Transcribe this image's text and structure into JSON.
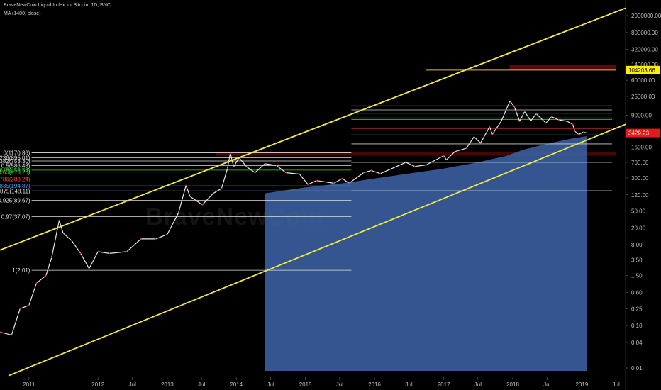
{
  "chart_data": {
    "type": "line",
    "title": "BraveNewCoin Liquid Index for Bitcoin, 1D, BNC",
    "indicator": "MA (1400, close)",
    "y_scale": "log",
    "ylim": [
      0.01,
      2000000
    ],
    "xlim": [
      "2010-08-01",
      "2019-08-20"
    ],
    "y_ticks": [
      "2000000.00",
      "800000.00",
      "320000.00",
      "140000.00",
      "60000.00",
      "25000.00",
      "9000.00",
      "3600.00",
      "1600.00",
      "700.00",
      "300.00",
      "120.00",
      "50.00",
      "20.00",
      "8.00",
      "3.50",
      "1.50",
      "0.60",
      "0.25",
      "0.10",
      "0.04",
      "0.01"
    ],
    "y_tick_values": [
      2000000,
      800000,
      320000,
      140000,
      60000,
      25000,
      9000,
      3600,
      1600,
      700,
      300,
      120,
      50,
      20,
      8,
      3.5,
      1.5,
      0.6,
      0.25,
      0.1,
      0.04,
      0.01
    ],
    "x_ticks": [
      {
        "label": "2011",
        "date": "2011-01-01"
      },
      {
        "label": "2012",
        "date": "2012-01-01"
      },
      {
        "label": "Jul",
        "date": "2012-07-01"
      },
      {
        "label": "2013",
        "date": "2013-01-01"
      },
      {
        "label": "Jul",
        "date": "2013-07-01"
      },
      {
        "label": "2014",
        "date": "2014-01-01"
      },
      {
        "label": "Jul",
        "date": "2014-07-01"
      },
      {
        "label": "2015",
        "date": "2015-01-01"
      },
      {
        "label": "Jul",
        "date": "2015-07-01"
      },
      {
        "label": "2016",
        "date": "2016-01-01"
      },
      {
        "label": "Jul",
        "date": "2016-07-01"
      },
      {
        "label": "2017",
        "date": "2017-01-01"
      },
      {
        "label": "Jul",
        "date": "2017-07-01"
      },
      {
        "label": "2018",
        "date": "2018-01-01"
      },
      {
        "label": "Jul",
        "date": "2018-07-01"
      },
      {
        "label": "2019",
        "date": "2019-01-01"
      },
      {
        "label": "Jul",
        "date": "2019-07-01"
      }
    ],
    "price_series": {
      "name": "BraveNewCoin Liquid Index for Bitcoin",
      "color": "#e8e8e8",
      "points": [
        [
          "2010-08-01",
          0.07
        ],
        [
          "2010-10-01",
          0.06
        ],
        [
          "2010-11-15",
          0.25
        ],
        [
          "2011-01-01",
          0.3
        ],
        [
          "2011-02-10",
          1.0
        ],
        [
          "2011-04-01",
          1.5
        ],
        [
          "2011-05-01",
          4.0
        ],
        [
          "2011-06-10",
          30.0
        ],
        [
          "2011-07-01",
          15.0
        ],
        [
          "2011-08-15",
          10.0
        ],
        [
          "2011-10-01",
          5.0
        ],
        [
          "2011-11-15",
          2.2
        ],
        [
          "2012-01-01",
          5.5
        ],
        [
          "2012-03-01",
          5.0
        ],
        [
          "2012-06-01",
          5.5
        ],
        [
          "2012-08-15",
          11.0
        ],
        [
          "2012-11-01",
          11.0
        ],
        [
          "2013-01-01",
          14.0
        ],
        [
          "2013-03-01",
          45.0
        ],
        [
          "2013-04-10",
          200.0
        ],
        [
          "2013-05-01",
          110.0
        ],
        [
          "2013-07-05",
          70.0
        ],
        [
          "2013-09-01",
          130.0
        ],
        [
          "2013-10-15",
          170.0
        ],
        [
          "2013-11-15",
          500.0
        ],
        [
          "2013-11-30",
          1150.0
        ],
        [
          "2013-12-18",
          550.0
        ],
        [
          "2014-01-15",
          900.0
        ],
        [
          "2014-02-25",
          550.0
        ],
        [
          "2014-04-10",
          400.0
        ],
        [
          "2014-06-01",
          650.0
        ],
        [
          "2014-08-01",
          590.0
        ],
        [
          "2014-09-20",
          400.0
        ],
        [
          "2014-12-01",
          370.0
        ],
        [
          "2015-01-15",
          210.0
        ],
        [
          "2015-03-01",
          260.0
        ],
        [
          "2015-06-01",
          225.0
        ],
        [
          "2015-07-15",
          290.0
        ],
        [
          "2015-08-20",
          225.0
        ],
        [
          "2015-11-05",
          400.0
        ],
        [
          "2015-12-15",
          450.0
        ],
        [
          "2016-02-01",
          380.0
        ],
        [
          "2016-06-15",
          700.0
        ],
        [
          "2016-08-01",
          560.0
        ],
        [
          "2016-10-01",
          610.0
        ],
        [
          "2017-01-01",
          1000.0
        ],
        [
          "2017-01-15",
          800.0
        ],
        [
          "2017-03-01",
          1250.0
        ],
        [
          "2017-05-01",
          1500.0
        ],
        [
          "2017-06-10",
          2800.0
        ],
        [
          "2017-07-15",
          2000.0
        ],
        [
          "2017-09-01",
          4800.0
        ],
        [
          "2017-09-15",
          3200.0
        ],
        [
          "2017-11-01",
          6500.0
        ],
        [
          "2017-12-17",
          19500.0
        ],
        [
          "2018-01-10",
          14000.0
        ],
        [
          "2018-02-06",
          6500.0
        ],
        [
          "2018-03-05",
          11000.0
        ],
        [
          "2018-04-06",
          6600.0
        ],
        [
          "2018-05-05",
          9800.0
        ],
        [
          "2018-06-25",
          5900.0
        ],
        [
          "2018-07-25",
          8300.0
        ],
        [
          "2018-09-01",
          7000.0
        ],
        [
          "2018-10-15",
          6500.0
        ],
        [
          "2018-11-14",
          5500.0
        ],
        [
          "2018-11-25",
          3800.0
        ],
        [
          "2018-12-15",
          3200.0
        ],
        [
          "2019-01-10",
          3600.0
        ],
        [
          "2019-01-28",
          3429.23
        ]
      ]
    },
    "ma_series": {
      "name": "MA (1400, close)",
      "color": "#3d64a8",
      "points": [
        [
          "2014-06-01",
          130.0
        ],
        [
          "2014-09-01",
          150.0
        ],
        [
          "2015-01-01",
          180.0
        ],
        [
          "2015-07-01",
          220.0
        ],
        [
          "2016-01-01",
          290.0
        ],
        [
          "2016-07-01",
          380.0
        ],
        [
          "2017-01-01",
          500.0
        ],
        [
          "2017-07-01",
          700.0
        ],
        [
          "2017-12-01",
          1000.0
        ],
        [
          "2018-03-01",
          1400.0
        ],
        [
          "2018-07-01",
          1900.0
        ],
        [
          "2018-11-01",
          2500.0
        ],
        [
          "2019-01-28",
          2900.0
        ]
      ]
    },
    "channel_lines": [
      {
        "name": "upper channel",
        "color": "#f4eb3b",
        "start": [
          "2010-08-01",
          6.0
        ],
        "end": [
          "2019-08-20",
          3000000.0
        ]
      },
      {
        "name": "lower channel",
        "color": "#f4eb3b",
        "start": [
          "2010-09-15",
          0.0066
        ],
        "end": [
          "2019-08-20",
          5500.0
        ]
      }
    ],
    "fib_levels": [
      {
        "label": "0(1170.86)",
        "value": 1170.86,
        "color": "#e0e0e0"
      },
      {
        "label": "0.236(895.01)",
        "value": 895.01,
        "color": "#e0e0e0"
      },
      {
        "label": "0.382(753.30)",
        "value": 753.3,
        "color": "#e0e0e0"
      },
      {
        "label": "0.5(586.43)",
        "value": 586.43,
        "color": "#e0e0e0"
      },
      {
        "label": "0.618(459.54)",
        "value": 459.54,
        "color": "#35d835"
      },
      {
        "label": "0.65(413.78)",
        "value": 413.78,
        "color": "#35d835"
      },
      {
        "label": "0.786(283.24)",
        "value": 283.24,
        "color": "#ff3b3b"
      },
      {
        "label": "0.835(194.87)",
        "value": 194.87,
        "color": "#3ba2ff"
      },
      {
        "label": "0.875(148.11)",
        "value": 148.11,
        "color": "#e0e0e0"
      },
      {
        "label": "0.925(89.67)",
        "value": 89.67,
        "color": "#e0e0e0"
      },
      {
        "label": "0.97(37.07)",
        "value": 37.07,
        "color": "#e0e0e0"
      },
      {
        "label": "1(2.01)",
        "value": 2.01,
        "color": "#e0e0e0"
      }
    ],
    "fib_range": [
      "2011-01-15",
      "2015-09-01"
    ],
    "fib2_levels": [
      {
        "value": 19500,
        "color": "#cfcfcf"
      },
      {
        "value": 15000,
        "color": "#cfcfcf"
      },
      {
        "value": 12000,
        "color": "#cfcfcf"
      },
      {
        "value": 10000,
        "color": "#cfcfcf"
      },
      {
        "value": 7800,
        "color": "#35d835"
      },
      {
        "value": 7200,
        "color": "#35d835"
      },
      {
        "value": 4400,
        "color": "#ff3b3b"
      },
      {
        "value": 3100,
        "color": "#cfcfcf"
      },
      {
        "value": 1900,
        "color": "#cfcfcf"
      },
      {
        "value": 700,
        "color": "#cfcfcf"
      },
      {
        "value": 150,
        "color": "#cfcfcf"
      }
    ],
    "fib2_range": [
      "2015-09-01",
      "2019-06-10"
    ],
    "target_box": {
      "top": 140000,
      "bottom": 104203.66,
      "start": "2017-12-15",
      "end": "2019-07-01",
      "color": "#6e0b0b"
    },
    "resistance_box": {
      "top": 1250,
      "bottom": 1000,
      "start": "2013-09-15",
      "end": "2019-07-01",
      "color": "#5a0a0a"
    },
    "target_line": {
      "value": 104203.66,
      "start": "2016-10-01",
      "end": "2019-07-01",
      "color": "#e0c020"
    },
    "price_labels": [
      {
        "text": "104203.66",
        "value": 104203.66,
        "bg": "#ffee00",
        "fg": "#000000"
      },
      {
        "text": "3429.23",
        "value": 3429.23,
        "bg": "#e11b1b",
        "fg": "#ffffff"
      }
    ],
    "watermark": "BraveNewCoin"
  }
}
